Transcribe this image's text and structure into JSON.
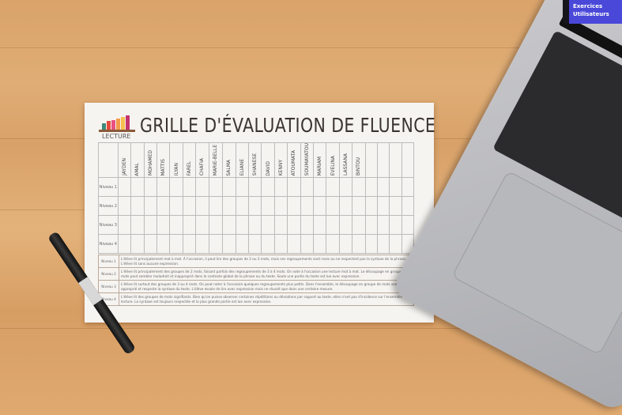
{
  "sheet": {
    "logo_text": "LECTURE",
    "title": "GRILLE D'ÉVALUATION DE FLUENCE",
    "students": [
      "JAYDEN",
      "AMAL",
      "MOHAMED",
      "MATTIS",
      "ILYAN",
      "FAREL",
      "CHAFIA",
      "MARIE-BELLE",
      "SALMA",
      "ELIANE",
      "SHANESE",
      "DAVID",
      "KENNY",
      "ATOUMATA",
      "SOUMAYATOU",
      "MARIAM",
      "EVELINA",
      "LASSANA",
      "BINTOU",
      "",
      "",
      "",
      ""
    ],
    "rows": [
      "Niveau 1",
      "Niveau 2",
      "Niveau 3",
      "Niveau 4"
    ],
    "levels": [
      {
        "label": "Niveau 1",
        "text": "L'élève lit principalement mot à mot. À l'occasion, il peut lire des groupes de 2 ou 3 mots, mais ces regroupements sont rares ou ne respectent pas la syntaxe de la phrase. L'élève lit sans aucune expression."
      },
      {
        "label": "Niveau 2",
        "text": "L'élève lit principalement des groupes de 2 mots, faisant parfois des regroupements de 3 à 4 mots. On note à l'occasion une lecture mot à mot. Le découpage en groupe de mots peut sembler maladroit et inapproprié dans le contexte global de la phrase ou du texte. Seule une partie du texte est lue avec expression."
      },
      {
        "label": "Niveau 3",
        "text": "L'élève lit surtout des groupes de 3 ou 4 mots. On peut noter à l'occasion quelques regroupements plus petits. Dans l'ensemble, le découpage en groupe de mots semble approprié et respecte la syntaxe du texte. L'élève essaie de lire avec expression mais ne réussit que dans une certaine mesure."
      },
      {
        "label": "Niveau 4",
        "text": "L'élève lit des groupes de mots signifiants. Bien qu'on puisse observer certaines répétitions ou déviations par rapport au texte, elles n'ont pas d'incidence sur l'ensemble de la lecture. La syntaxe est toujours respectée et la plus grande partie est lue avec expression."
      }
    ]
  },
  "laptop_screen": {
    "items": [
      "Exercices",
      "Utilisateurs"
    ]
  },
  "colors": {
    "wood": "#dba56c",
    "paper": "#f6f4f1",
    "laptop": "#b9babe",
    "screen_accent": "#4a48d8"
  }
}
